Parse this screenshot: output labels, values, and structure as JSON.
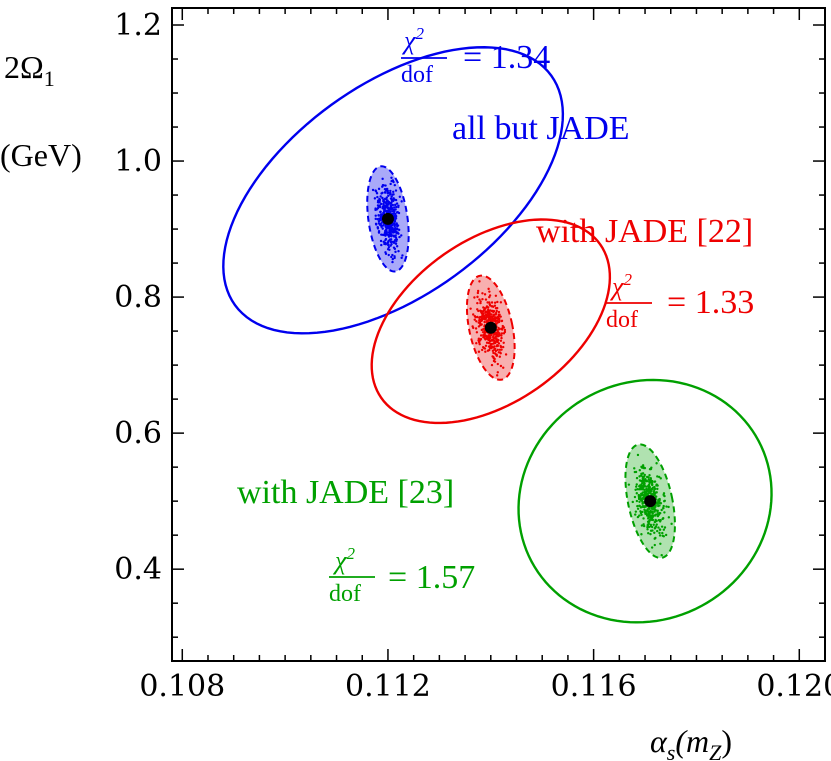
{
  "chart_data": {
    "type": "scatter",
    "xlabel": {
      "main": "α",
      "sub": "s",
      "paren_open": "(m",
      "paren_sub": "Z",
      "paren_close": ")"
    },
    "ylabel": {
      "line1_main": "2Ω",
      "line1_sub": "1",
      "line2": "(GeV)"
    },
    "xlim": [
      0.1078,
      0.1205
    ],
    "ylim": [
      0.265,
      1.225
    ],
    "xticks": [
      {
        "value": 0.108,
        "label": "0.108"
      },
      {
        "value": 0.112,
        "label": "0.112"
      },
      {
        "value": 0.116,
        "label": "0.116"
      },
      {
        "value": 0.12,
        "label": "0.120"
      }
    ],
    "yticks": [
      {
        "value": 0.4,
        "label": "0.4"
      },
      {
        "value": 0.6,
        "label": "0.6"
      },
      {
        "value": 0.8,
        "label": "0.8"
      },
      {
        "value": 1.0,
        "label": "1.0"
      },
      {
        "value": 1.2,
        "label": "1.2"
      }
    ],
    "series": [
      {
        "name": "all but JADE",
        "color": "#0000ee",
        "fill": "#6f6ff5",
        "best_fit": [
          0.112,
          0.915
        ],
        "inner_ellipse": {
          "center": [
            0.112,
            0.915
          ],
          "rx": 0.00038,
          "ry": 0.078,
          "rot_deg": -8
        },
        "outer_ellipse": {
          "center": [
            0.1121,
            0.957
          ],
          "rx": 0.0038,
          "ry": 0.155,
          "rot_deg": -36
        },
        "chi2_dof": "1.34"
      },
      {
        "name": "with JADE [22]",
        "color": "#ee0000",
        "fill": "#f37a7a",
        "best_fit": [
          0.114,
          0.755
        ],
        "inner_ellipse": {
          "center": [
            0.114,
            0.755
          ],
          "rx": 0.00042,
          "ry": 0.078,
          "rot_deg": -12
        },
        "outer_ellipse": {
          "center": [
            0.114,
            0.7645
          ],
          "rx": 0.0026,
          "ry": 0.12,
          "rot_deg": -35
        },
        "chi2_dof": "1.33"
      },
      {
        "name": "with JADE [23]",
        "color": "#00a000",
        "fill": "#7ccf7c",
        "best_fit": [
          0.1171,
          0.5
        ],
        "inner_ellipse": {
          "center": [
            0.1171,
            0.5
          ],
          "rx": 0.00043,
          "ry": 0.085,
          "rot_deg": -12
        },
        "outer_ellipse": {
          "center": [
            0.117,
            0.5
          ],
          "rx": 0.0025,
          "ry": 0.175,
          "rot_deg": -28
        },
        "chi2_dof": "1.57"
      }
    ],
    "annotations": {
      "chi_num": "χ",
      "chi_exp": "2",
      "chi_den": "dof",
      "equals": "=",
      "blue_label": "all but JADE",
      "red_label": "with JADE [22]",
      "green_label": "with JADE [23]"
    }
  }
}
